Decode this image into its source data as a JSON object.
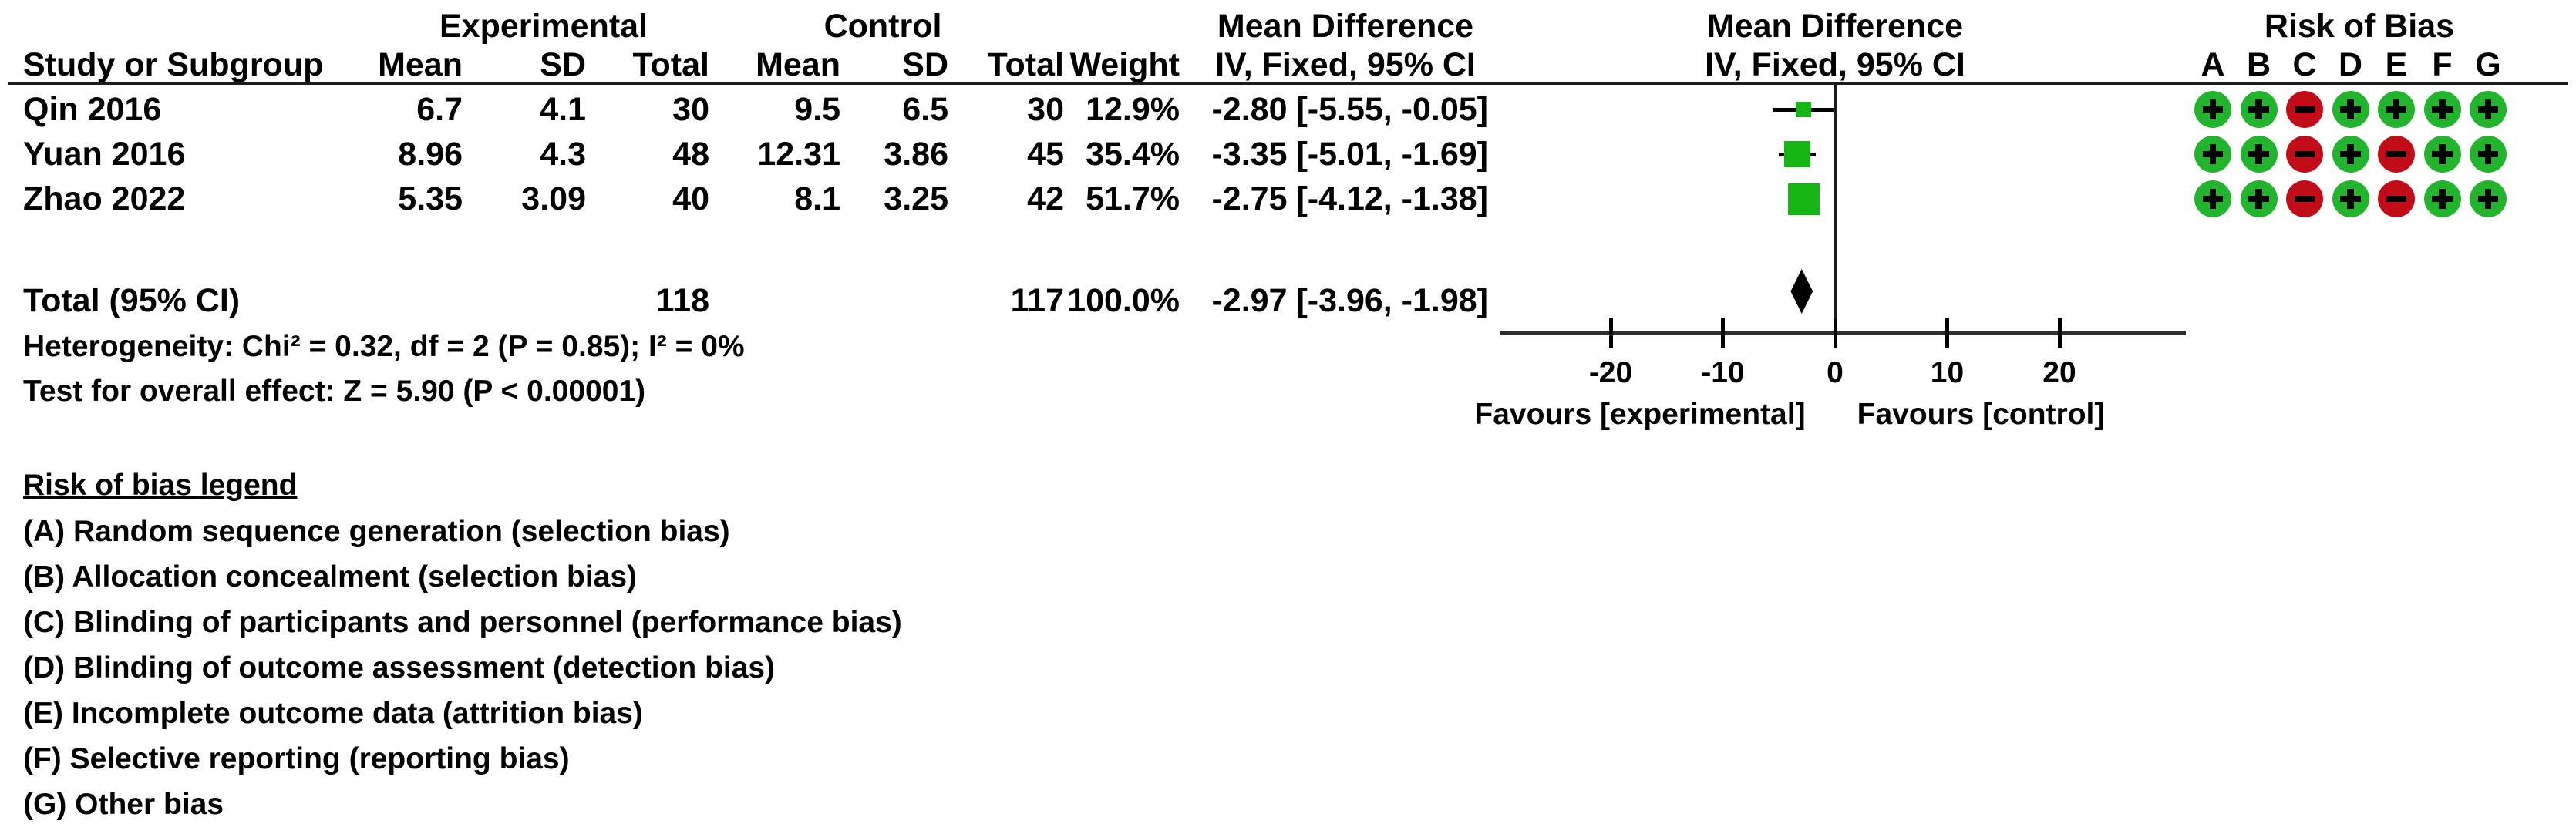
{
  "header": {
    "experimental": "Experimental",
    "control": "Control",
    "mean_difference": "Mean Difference",
    "risk_of_bias": "Risk of Bias",
    "study_or_subgroup": "Study or Subgroup",
    "mean": "Mean",
    "sd": "SD",
    "total": "Total",
    "weight": "Weight",
    "iv_fixed_ci": "IV, Fixed, 95% CI",
    "rob_letters": [
      "A",
      "B",
      "C",
      "D",
      "E",
      "F",
      "G"
    ]
  },
  "chart_data": {
    "type": "forest",
    "effect_measure": "Mean Difference",
    "method": "IV, Fixed, 95% CI",
    "studies": [
      {
        "name": "Qin 2016",
        "exp_mean": "6.7",
        "exp_sd": "4.1",
        "exp_total": "30",
        "ctrl_mean": "9.5",
        "ctrl_sd": "6.5",
        "ctrl_total": "30",
        "weight": "12.9%",
        "weight_value": 12.9,
        "md": -2.8,
        "ci_low": -5.55,
        "ci_high": -0.05,
        "md_label": "-2.80 [-5.55, -0.05]",
        "risk_of_bias": [
          "+",
          "+",
          "-",
          "+",
          "+",
          "+",
          "+"
        ]
      },
      {
        "name": "Yuan 2016",
        "exp_mean": "8.96",
        "exp_sd": "4.3",
        "exp_total": "48",
        "ctrl_mean": "12.31",
        "ctrl_sd": "3.86",
        "ctrl_total": "45",
        "weight": "35.4%",
        "weight_value": 35.4,
        "md": -3.35,
        "ci_low": -5.01,
        "ci_high": -1.69,
        "md_label": "-3.35 [-5.01, -1.69]",
        "risk_of_bias": [
          "+",
          "+",
          "-",
          "+",
          "-",
          "+",
          "+"
        ]
      },
      {
        "name": "Zhao 2022",
        "exp_mean": "5.35",
        "exp_sd": "3.09",
        "exp_total": "40",
        "ctrl_mean": "8.1",
        "ctrl_sd": "3.25",
        "ctrl_total": "42",
        "weight": "51.7%",
        "weight_value": 51.7,
        "md": -2.75,
        "ci_low": -4.12,
        "ci_high": -1.38,
        "md_label": "-2.75 [-4.12, -1.38]",
        "risk_of_bias": [
          "+",
          "+",
          "-",
          "+",
          "-",
          "+",
          "+"
        ]
      }
    ],
    "total": {
      "label": "Total (95% CI)",
      "exp_total": "118",
      "ctrl_total": "117",
      "weight": "100.0%",
      "md": -2.97,
      "ci_low": -3.96,
      "ci_high": -1.98,
      "md_label": "-2.97 [-3.96, -1.98]"
    },
    "heterogeneity": "Heterogeneity: Chi² = 0.32, df = 2 (P = 0.85); I² = 0%",
    "overall_effect": "Test for overall effect: Z = 5.90 (P < 0.00001)",
    "axis": {
      "ticks": [
        -20,
        -10,
        0,
        10,
        20
      ],
      "min": -30,
      "max": 31,
      "favours_left": "Favours [experimental]",
      "favours_right": "Favours [control]"
    }
  },
  "colors": {
    "square_green": "#16b516",
    "rob_green": "#21b42c",
    "rob_red": "#c20d19",
    "diamond": "#000000",
    "axis_line": "#2e2e2e"
  },
  "legend": {
    "title": "Risk of bias legend",
    "items": [
      "(A) Random sequence generation (selection bias)",
      "(B) Allocation concealment (selection bias)",
      "(C) Blinding of participants and personnel (performance bias)",
      "(D) Blinding of outcome assessment (detection bias)",
      "(E) Incomplete outcome data (attrition bias)",
      "(F) Selective reporting (reporting bias)",
      "(G) Other bias"
    ]
  }
}
